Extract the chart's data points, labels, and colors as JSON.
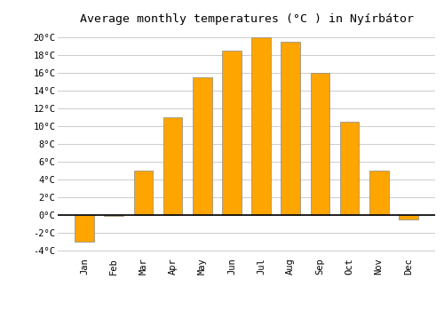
{
  "months": [
    "Jan",
    "Feb",
    "Mar",
    "Apr",
    "May",
    "Jun",
    "Jul",
    "Aug",
    "Sep",
    "Oct",
    "Nov",
    "Dec"
  ],
  "values": [
    -3.0,
    -0.1,
    5.0,
    11.0,
    15.5,
    18.5,
    20.0,
    19.5,
    16.0,
    10.5,
    5.0,
    -0.5
  ],
  "bar_color": "#FFA500",
  "bar_edge_color": "#888888",
  "title": "Average monthly temperatures (°C ) in Nyírbátor",
  "ylim": [
    -4.5,
    21
  ],
  "yticks": [
    -4,
    -2,
    0,
    2,
    4,
    6,
    8,
    10,
    12,
    14,
    16,
    18,
    20
  ],
  "ytick_labels": [
    "-4°C",
    "-2°C",
    "0°C",
    "2°C",
    "4°C",
    "6°C",
    "8°C",
    "10°C",
    "12°C",
    "14°C",
    "16°C",
    "18°C",
    "20°C"
  ],
  "background_color": "#ffffff",
  "grid_color": "#cccccc",
  "zero_line_color": "#000000",
  "title_fontsize": 9.5,
  "tick_fontsize": 7.5,
  "bar_width": 0.65
}
